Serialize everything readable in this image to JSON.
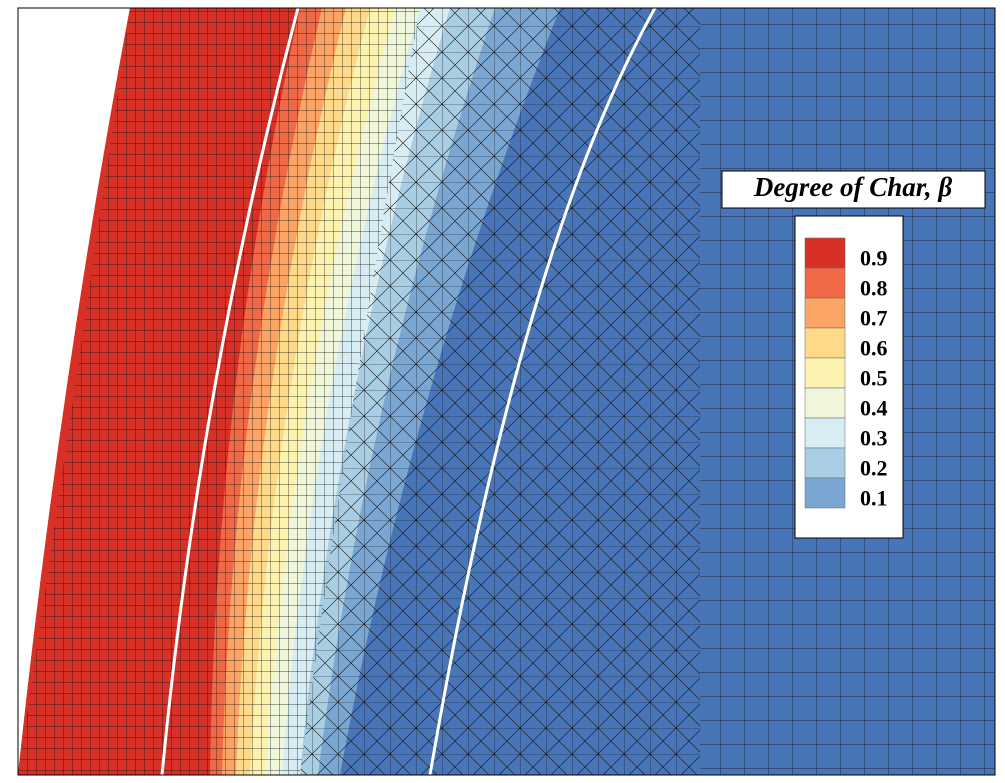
{
  "chart_data": {
    "type": "contour",
    "title": "Degree of Char, β",
    "levels": [
      0.9,
      0.8,
      0.7,
      0.6,
      0.5,
      0.4,
      0.3,
      0.2,
      0.1
    ],
    "colors": [
      "#d73027",
      "#f06a48",
      "#fca465",
      "#fed98a",
      "#fdf3b0",
      "#eff6da",
      "#d8ecf3",
      "#a9cde3",
      "#7aa6d2"
    ],
    "base_color": "#4874b8"
  }
}
